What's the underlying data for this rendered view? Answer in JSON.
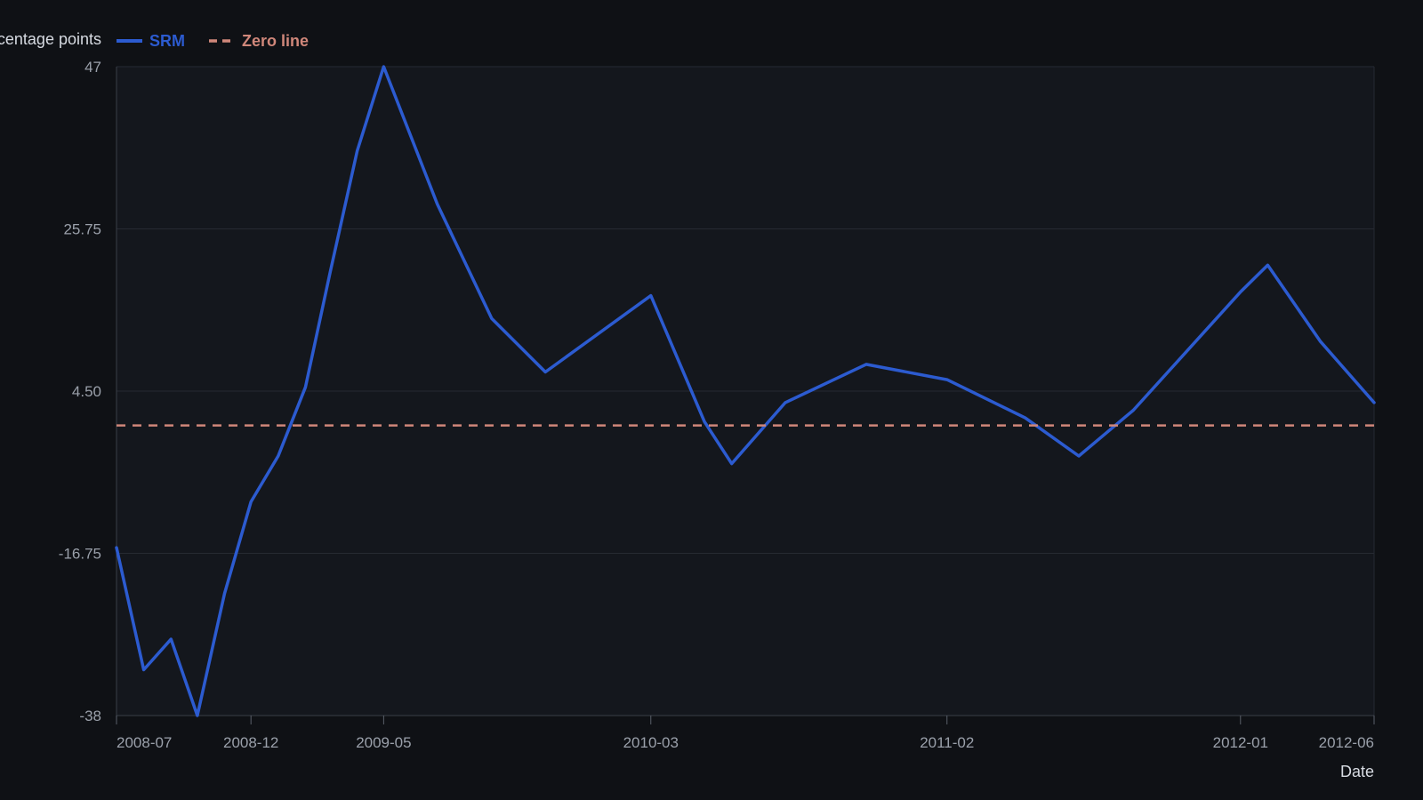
{
  "chart_data": {
    "type": "line",
    "title": "",
    "xlabel": "Date",
    "ylabel": "Percentage points",
    "ylim": [
      -38,
      47
    ],
    "y_ticks": [
      "47",
      "25.75",
      "4.50",
      "-16.75",
      "-38"
    ],
    "y_tick_values": [
      47,
      25.75,
      4.5,
      -16.75,
      -38
    ],
    "x_ticks": [
      "2008-07",
      "2008-12",
      "2009-05",
      "2010-03",
      "2011-02",
      "2012-01",
      "2012-06"
    ],
    "x_tick_dates": [
      "2008-07-01",
      "2008-12-01",
      "2009-05-01",
      "2010-03-01",
      "2011-02-01",
      "2012-01-01",
      "2012-06-01"
    ],
    "xlim": [
      "2008-07-01",
      "2012-06-01"
    ],
    "grid": true,
    "legend": {
      "placement": "top-left"
    },
    "series": [
      {
        "name": "SRM",
        "color": "#2c5bd0",
        "style": "solid",
        "points": [
          {
            "x": "2008-07-01",
            "y": -16.0
          },
          {
            "x": "2008-08-01",
            "y": -32.0
          },
          {
            "x": "2008-09-01",
            "y": -28.0
          },
          {
            "x": "2008-10-01",
            "y": -38.0
          },
          {
            "x": "2008-11-01",
            "y": -22.0
          },
          {
            "x": "2008-12-01",
            "y": -10.0
          },
          {
            "x": "2009-01-01",
            "y": -4.0
          },
          {
            "x": "2009-02-01",
            "y": 5.0
          },
          {
            "x": "2009-03-01",
            "y": 20.0
          },
          {
            "x": "2009-04-01",
            "y": 36.0
          },
          {
            "x": "2009-05-01",
            "y": 47.0
          },
          {
            "x": "2009-07-01",
            "y": 29.0
          },
          {
            "x": "2009-09-01",
            "y": 14.0
          },
          {
            "x": "2009-11-01",
            "y": 7.0
          },
          {
            "x": "2010-03-01",
            "y": 17.0
          },
          {
            "x": "2010-05-01",
            "y": 0.5
          },
          {
            "x": "2010-06-01",
            "y": -5.0
          },
          {
            "x": "2010-08-01",
            "y": 3.0
          },
          {
            "x": "2010-11-01",
            "y": 8.0
          },
          {
            "x": "2011-02-01",
            "y": 6.0
          },
          {
            "x": "2011-05-01",
            "y": 1.0
          },
          {
            "x": "2011-07-01",
            "y": -4.0
          },
          {
            "x": "2011-09-01",
            "y": 2.0
          },
          {
            "x": "2012-01-01",
            "y": 17.5
          },
          {
            "x": "2012-02-01",
            "y": 21.0
          },
          {
            "x": "2012-04-01",
            "y": 11.0
          },
          {
            "x": "2012-06-01",
            "y": 3.0
          }
        ]
      },
      {
        "name": "Zero line",
        "color": "#d0877a",
        "style": "dashed",
        "points": [
          {
            "x": "2008-07-01",
            "y": 0
          },
          {
            "x": "2012-06-01",
            "y": 0
          }
        ]
      }
    ]
  }
}
